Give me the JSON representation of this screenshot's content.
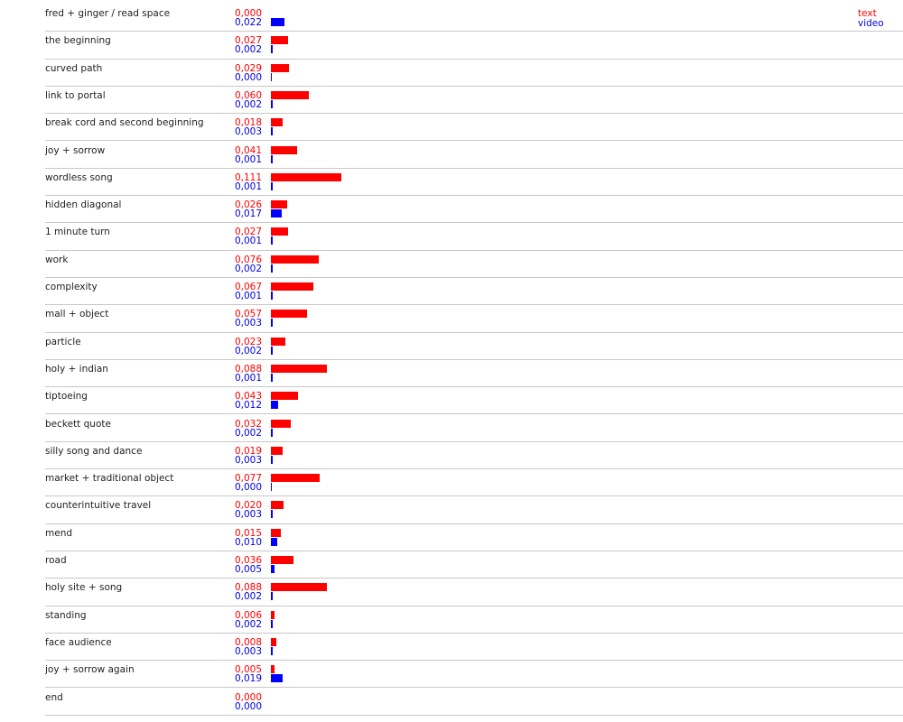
{
  "chart_data": {
    "type": "bar",
    "orientation": "horizontal",
    "legend_position": "top-right",
    "series": [
      {
        "name": "text",
        "color": "#ff0000"
      },
      {
        "name": "video",
        "color": "#0000ff"
      }
    ],
    "xlim": [
      0,
      0.111
    ],
    "categories": [
      {
        "label": "fred + ginger / read space",
        "text": "0,000",
        "video": "0,022"
      },
      {
        "label": "the beginning",
        "text": "0,027",
        "video": "0,002"
      },
      {
        "label": "curved path",
        "text": "0,029",
        "video": "0,000"
      },
      {
        "label": "link to portal",
        "text": "0,060",
        "video": "0,002"
      },
      {
        "label": "break cord and second beginning",
        "text": "0,018",
        "video": "0,003"
      },
      {
        "label": "joy + sorrow",
        "text": "0,041",
        "video": "0,001"
      },
      {
        "label": "wordless song",
        "text": "0,111",
        "video": "0,001"
      },
      {
        "label": "hidden diagonal",
        "text": "0,026",
        "video": "0,017"
      },
      {
        "label": "1 minute turn",
        "text": "0,027",
        "video": "0,001"
      },
      {
        "label": "work",
        "text": "0,076",
        "video": "0,002"
      },
      {
        "label": "complexity",
        "text": "0,067",
        "video": "0,001"
      },
      {
        "label": "mall + object",
        "text": "0,057",
        "video": "0,003"
      },
      {
        "label": "particle",
        "text": "0,023",
        "video": "0,002"
      },
      {
        "label": "holy + indian",
        "text": "0,088",
        "video": "0,001"
      },
      {
        "label": "tiptoeing",
        "text": "0,043",
        "video": "0,012"
      },
      {
        "label": "beckett quote",
        "text": "0,032",
        "video": "0,002"
      },
      {
        "label": "silly song and dance",
        "text": "0,019",
        "video": "0,003"
      },
      {
        "label": "market + traditional object",
        "text": "0,077",
        "video": "0,000"
      },
      {
        "label": "counterintuitive travel",
        "text": "0,020",
        "video": "0,003"
      },
      {
        "label": "mend",
        "text": "0,015",
        "video": "0,010"
      },
      {
        "label": "road",
        "text": "0,036",
        "video": "0,005"
      },
      {
        "label": "holy site + song",
        "text": "0,088",
        "video": "0,002"
      },
      {
        "label": "standing",
        "text": "0,006",
        "video": "0,002"
      },
      {
        "label": "face audience",
        "text": "0,008",
        "video": "0,003"
      },
      {
        "label": "joy + sorrow again",
        "text": "0,005",
        "video": "0,019"
      },
      {
        "label": "end",
        "text": "0,000",
        "video": "0,000"
      }
    ]
  }
}
